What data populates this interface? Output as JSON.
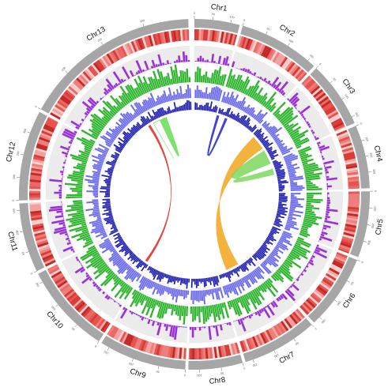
{
  "chromosomes": [
    {
      "name": "Chr1",
      "ticks": [
        "0",
        "50",
        "100"
      ]
    },
    {
      "name": "Chr2",
      "ticks": [
        "0",
        "50",
        "100",
        "150"
      ]
    },
    {
      "name": "Chr3",
      "ticks": [
        "0",
        "50",
        "100",
        "150"
      ]
    },
    {
      "name": "Chr4",
      "ticks": [
        "0",
        "100",
        "200",
        "300"
      ]
    },
    {
      "name": "Chr5",
      "ticks": [
        "0",
        "100",
        "200",
        "300"
      ]
    },
    {
      "name": "Chr6",
      "ticks": [
        "0",
        "50",
        "100",
        "150"
      ]
    },
    {
      "name": "Chr7",
      "ticks": [
        "0",
        "50",
        "100",
        "150"
      ]
    },
    {
      "name": "Chr8",
      "ticks": [
        "0",
        "50",
        "100"
      ]
    },
    {
      "name": "Chr9",
      "ticks": [
        "0",
        "50",
        "100",
        "150"
      ]
    },
    {
      "name": "Chr10",
      "ticks": [
        "0",
        "50",
        "100",
        "150"
      ]
    },
    {
      "name": "Chr11",
      "ticks": [
        "0",
        "50",
        "100",
        "150"
      ]
    },
    {
      "name": "Chr12",
      "ticks": [
        "0",
        "100",
        "200",
        "300"
      ]
    },
    {
      "name": "Chr13",
      "ticks": [
        "0",
        "100",
        "200",
        "300"
      ]
    }
  ],
  "tracks": [
    {
      "name": "ideogram",
      "color": "#a6a6a6"
    },
    {
      "name": "density-heatmap",
      "color": "#e8524f"
    },
    {
      "name": "purple-histogram",
      "color": "#9b30d9"
    },
    {
      "name": "green-histogram",
      "color": "#2fb52f"
    },
    {
      "name": "lightblue-histogram",
      "color": "#6b6bf0"
    },
    {
      "name": "darkblue-histogram",
      "color": "#1e1eaf"
    }
  ],
  "links": [
    {
      "from": "Chr13",
      "to": "Chr9",
      "color": "#e0261d"
    },
    {
      "from": "Chr13",
      "to": "Chr13",
      "color": "#66dd55"
    },
    {
      "from": "Chr1",
      "to": "Chr1",
      "color": "#2323c8"
    },
    {
      "from": "Chr2",
      "to": "Chr7",
      "color": "#f2a51c"
    },
    {
      "from": "Chr3",
      "to": "Chr4",
      "color": "#7ed85e"
    }
  ]
}
